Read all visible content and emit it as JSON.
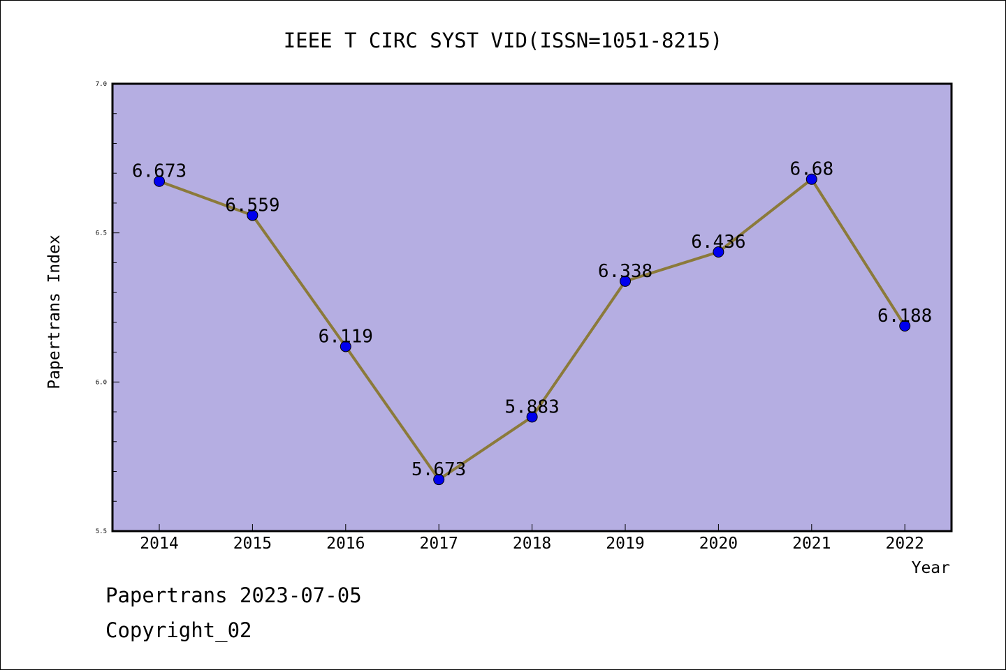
{
  "chart_data": {
    "type": "line",
    "title": "IEEE T CIRC SYST VID(ISSN=1051-8215)",
    "xlabel": "Year",
    "ylabel": "Papertrans Index",
    "categories": [
      "2014",
      "2015",
      "2016",
      "2017",
      "2018",
      "2019",
      "2020",
      "2021",
      "2022"
    ],
    "values": [
      6.673,
      6.559,
      6.119,
      5.673,
      5.883,
      6.338,
      6.436,
      6.68,
      6.188
    ],
    "value_labels": [
      "6.673",
      "6.559",
      "6.119",
      "5.673",
      "5.883",
      "6.338",
      "6.436",
      "6.68",
      "6.188"
    ],
    "ylim": [
      5.5,
      7.0
    ],
    "yticks": [
      5.5,
      6.0,
      6.5,
      7.0
    ],
    "ytick_labels": [
      "5.5",
      "6.0",
      "6.5",
      "7.0"
    ],
    "grid": false,
    "colors": {
      "plot_background": "#b5aee2",
      "line": "#8b7a3a",
      "marker": "#0000ee"
    }
  },
  "footer": {
    "line1": "Papertrans 2023-07-05",
    "line2": "Copyright_02"
  }
}
